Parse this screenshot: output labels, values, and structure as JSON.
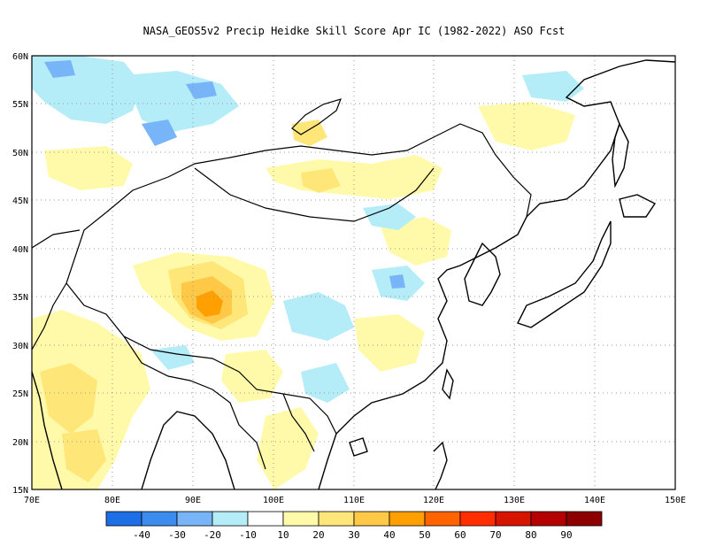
{
  "title": "NASA_GEOS5v2 Precip Heidke Skill Score Apr IC (1982-2022) ASO Fcst",
  "map": {
    "lon_range": [
      70,
      150
    ],
    "lat_range": [
      15,
      60
    ],
    "lon_ticks": [
      "70E",
      "80E",
      "90E",
      "100E",
      "110E",
      "120E",
      "130E",
      "140E",
      "150E"
    ],
    "lat_ticks": [
      "15N",
      "20N",
      "25N",
      "30N",
      "35N",
      "40N",
      "45N",
      "50N",
      "55N",
      "60N"
    ],
    "grid": "dotted",
    "features": [
      "coastlines",
      "country-borders"
    ]
  },
  "colorbar": {
    "labels": [
      "-40",
      "-30",
      "-20",
      "-10",
      "10",
      "20",
      "30",
      "40",
      "50",
      "60",
      "70",
      "80",
      "90"
    ],
    "colors": [
      "#1e6ee6",
      "#3c8cf0",
      "#78b4f8",
      "#b4ecf8",
      "#ffffff",
      "#fffaaa",
      "#ffe678",
      "#ffc846",
      "#ffa000",
      "#ff6400",
      "#ff2d00",
      "#d71400",
      "#b40000",
      "#8c0000"
    ]
  },
  "regions": [
    {
      "name": "tibet-max",
      "level": "40"
    },
    {
      "name": "north-india",
      "level": "20"
    },
    {
      "name": "west-siberia",
      "level": "-30"
    }
  ]
}
